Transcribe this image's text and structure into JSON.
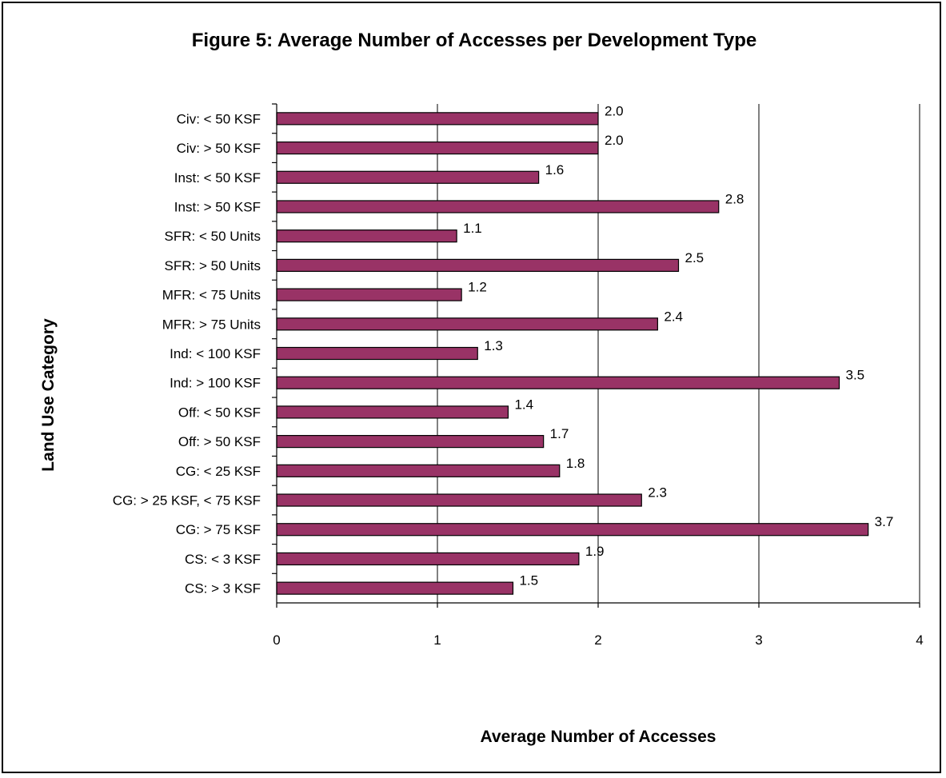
{
  "chart_data": {
    "type": "bar",
    "orientation": "horizontal",
    "title": "Figure 5: Average Number of Accesses per Development Type",
    "xlabel": "Average Number of Accesses",
    "ylabel": "Land Use Category",
    "xlim": [
      0,
      4
    ],
    "xticks": [
      "0",
      "1",
      "2",
      "3",
      "4"
    ],
    "grid": "vertical",
    "bar_color": "#993366",
    "categories": [
      "Civ: < 50 KSF",
      "Civ: > 50 KSF",
      "Inst: < 50 KSF",
      "Inst: > 50 KSF",
      "SFR: < 50 Units",
      "SFR: > 50 Units",
      "MFR: < 75 Units",
      "MFR: > 75 Units",
      "Ind: < 100 KSF",
      "Ind: > 100 KSF",
      "Off: < 50 KSF",
      "Off: > 50 KSF",
      "CG: < 25 KSF",
      "CG: > 25 KSF, < 75 KSF",
      "CG: > 75 KSF",
      "CS: < 3 KSF",
      "CS: > 3 KSF"
    ],
    "values": [
      2.0,
      2.0,
      1.63,
      2.75,
      1.12,
      2.5,
      1.15,
      2.37,
      1.25,
      3.5,
      1.44,
      1.66,
      1.76,
      2.27,
      3.68,
      1.88,
      1.47
    ],
    "data_labels": [
      "2.0",
      "2.0",
      "1.6",
      "2.8",
      "1.1",
      "2.5",
      "1.2",
      "2.4",
      "1.3",
      "3.5",
      "1.4",
      "1.7",
      "1.8",
      "2.3",
      "3.7",
      "1.9",
      "1.5"
    ]
  }
}
